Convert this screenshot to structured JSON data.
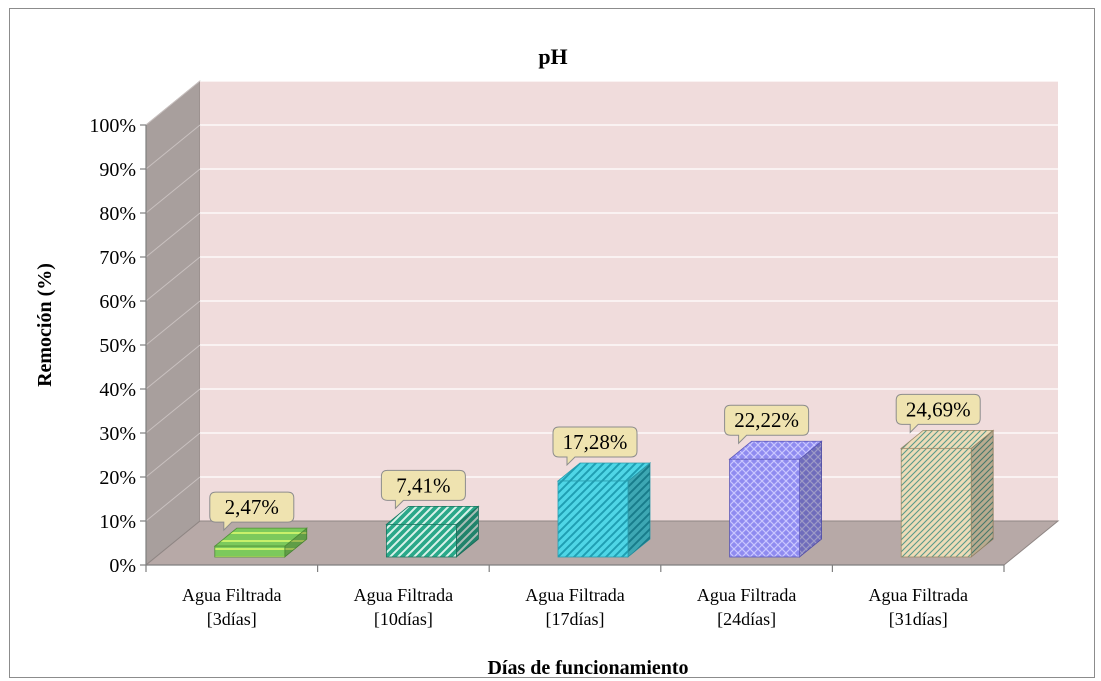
{
  "chart_data": {
    "type": "bar",
    "title": "pH",
    "xlabel": "Días de funcionamiento",
    "ylabel": "Remoción (%)",
    "ylim": [
      0,
      100
    ],
    "yticks": [
      "0%",
      "10%",
      "20%",
      "30%",
      "40%",
      "50%",
      "60%",
      "70%",
      "80%",
      "90%",
      "100%"
    ],
    "categories": [
      [
        "Agua Filtrada",
        "[3días]"
      ],
      [
        "Agua Filtrada",
        "[10días]"
      ],
      [
        "Agua Filtrada",
        "[17días]"
      ],
      [
        "Agua Filtrada",
        "[24días]"
      ],
      [
        "Agua Filtrada",
        "[31días]"
      ]
    ],
    "values": [
      2.47,
      7.41,
      17.28,
      22.22,
      24.69
    ],
    "data_labels": [
      "2,47%",
      "7,41%",
      "17,28%",
      "22,22%",
      "24,69%"
    ],
    "grid": true,
    "legend": "none",
    "colors": {
      "back_wall": "#f0dcdc",
      "side_wall": "#a89f9d",
      "floor": "#b7a9a7",
      "label_fill": "#efe3b0",
      "bars": [
        "#7cc95c",
        "#2aa889",
        "#4fd6e6",
        "#8f8bf0",
        "#e8d3ad"
      ]
    }
  }
}
